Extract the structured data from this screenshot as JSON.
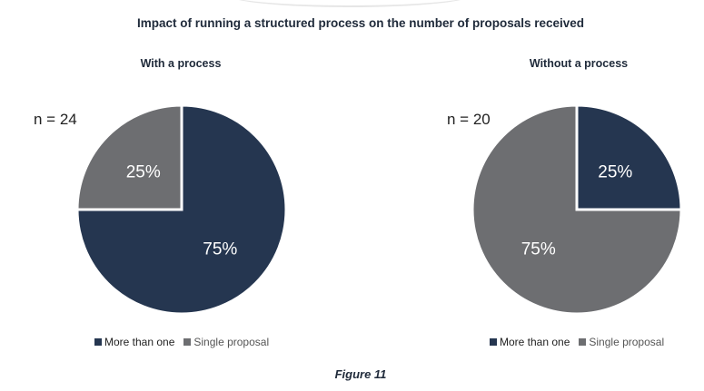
{
  "title": "Impact of running a structured process on the number of proposals received",
  "caption": "Figure 11",
  "colors": {
    "more_than_one": "#253650",
    "single_proposal": "#6d6e71"
  },
  "chart_data": [
    {
      "type": "pie",
      "title": "With a process",
      "n_label": "n = 24",
      "slices": [
        {
          "label": "More than one",
          "value": 75,
          "display": "75%"
        },
        {
          "label": "Single proposal",
          "value": 25,
          "display": "25%"
        }
      ],
      "legend": [
        "More than one",
        "Single proposal"
      ],
      "legend_position": "bottom"
    },
    {
      "type": "pie",
      "title": "Without a process",
      "n_label": "n = 20",
      "slices": [
        {
          "label": "More than one",
          "value": 25,
          "display": "25%"
        },
        {
          "label": "Single proposal",
          "value": 75,
          "display": "75%"
        }
      ],
      "legend": [
        "More than one",
        "Single proposal"
      ],
      "legend_position": "bottom"
    }
  ]
}
